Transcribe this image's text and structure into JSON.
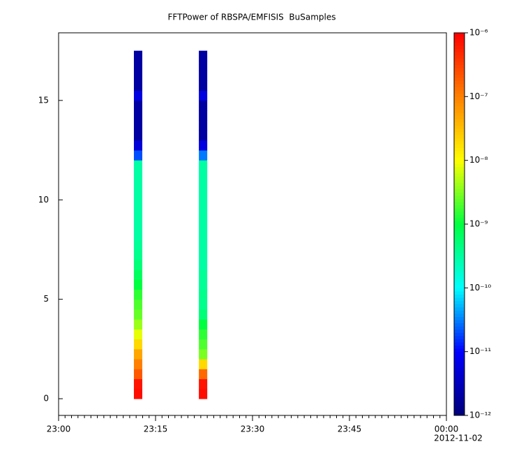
{
  "chart_data": {
    "type": "spectrogram",
    "title": "FFTPower of RBSPA/EMFISIS  BuSamples",
    "x_date_label": "2012-11-02",
    "xlim": [
      0,
      60
    ],
    "xticks": [
      {
        "value": 0,
        "label": "23:00"
      },
      {
        "value": 15,
        "label": "23:15"
      },
      {
        "value": 30,
        "label": "23:30"
      },
      {
        "value": 45,
        "label": "23:45"
      },
      {
        "value": 60,
        "label": "00:00"
      }
    ],
    "ylim": [
      -0.84,
      18.4
    ],
    "yticks": [
      0,
      5,
      10,
      15
    ],
    "zlim": [
      1e-12,
      1e-06
    ],
    "zlog": true,
    "zticks": [
      {
        "value": 1e-12,
        "label": "10⁻¹²"
      },
      {
        "value": 1e-11,
        "label": "10⁻¹¹"
      },
      {
        "value": 1e-10,
        "label": "10⁻¹⁰"
      },
      {
        "value": 1e-09,
        "label": "10⁻⁹"
      },
      {
        "value": 1e-08,
        "label": "10⁻⁸"
      },
      {
        "value": 1e-07,
        "label": "10⁻⁷"
      },
      {
        "value": 1e-06,
        "label": "10⁻⁶"
      }
    ],
    "colormap": [
      "#00007a",
      "#0000ff",
      "#00ffff",
      "#00ff40",
      "#ffff00",
      "#ff8000",
      "#ff0000"
    ],
    "y_bins": [
      0,
      0.5,
      1,
      1.5,
      2,
      2.5,
      3,
      3.5,
      4,
      4.5,
      5,
      5.5,
      6,
      6.5,
      7,
      7.5,
      8,
      8.5,
      9,
      9.5,
      10,
      10.5,
      11,
      11.5,
      12,
      12.5,
      13,
      13.5,
      14,
      14.5,
      15,
      15.5,
      16,
      16.5,
      17,
      17.5
    ],
    "columns": [
      {
        "x_range": [
          11.65,
          12.95
        ],
        "values": [
          8e-07,
          7e-07,
          2e-07,
          1e-07,
          5e-08,
          2e-08,
          8e-09,
          4e-09,
          2.5e-09,
          2e-09,
          1.5e-09,
          1e-09,
          7e-10,
          5e-10,
          4e-10,
          3.5e-10,
          3e-10,
          3e-10,
          3e-10,
          3e-10,
          3e-10,
          3e-10,
          3e-10,
          3e-10,
          2e-11,
          5e-12,
          2e-12,
          2e-12,
          2e-12,
          2e-12,
          6e-12,
          2e-12,
          2e-12,
          2e-12,
          2e-12
        ]
      },
      {
        "x_range": [
          21.7,
          23.0
        ],
        "values": [
          8e-07,
          7e-07,
          1.5e-07,
          2e-08,
          3e-09,
          2e-09,
          1.5e-09,
          1e-09,
          5e-10,
          4e-10,
          4e-10,
          3.5e-10,
          3.5e-10,
          3e-10,
          3e-10,
          3e-10,
          3e-10,
          3e-10,
          3e-10,
          3e-10,
          3e-10,
          3e-10,
          3e-10,
          3e-10,
          3e-11,
          6e-12,
          2e-12,
          2e-12,
          2e-12,
          2e-12,
          6e-12,
          2e-12,
          2e-12,
          2e-12,
          2e-12
        ]
      }
    ]
  }
}
